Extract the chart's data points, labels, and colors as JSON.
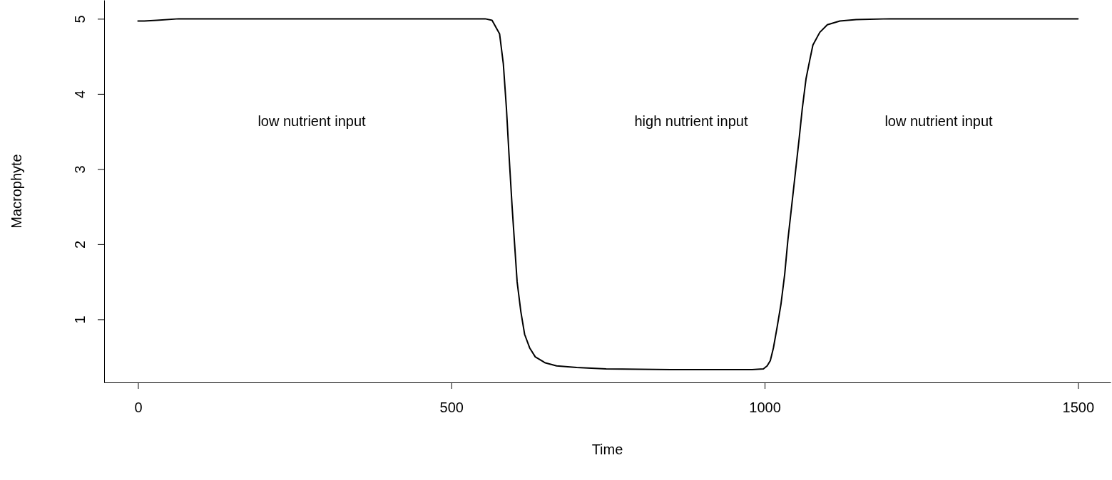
{
  "chart_data": {
    "type": "line",
    "xlabel": "Time",
    "ylabel": "Macrophyte",
    "xlim": [
      -54,
      1552
    ],
    "ylim": [
      0.16,
      5.25
    ],
    "xticks": [
      0,
      500,
      1000,
      1500
    ],
    "yticks": [
      1,
      2,
      3,
      4,
      5
    ],
    "grid": false,
    "line_style": "solid",
    "marker": "none",
    "series": [
      {
        "color": "#000000",
        "x": [
          0,
          10,
          30,
          65,
          200,
          400,
          554,
          565,
          577,
          583,
          588,
          592,
          597,
          601,
          605,
          611,
          617,
          625,
          634,
          650,
          668,
          700,
          747,
          850,
          918,
          980,
          998,
          1004,
          1009,
          1014,
          1020,
          1026,
          1032,
          1037,
          1043,
          1049,
          1055,
          1060,
          1066,
          1072,
          1077,
          1088,
          1100,
          1120,
          1146,
          1200,
          1350,
          1500
        ],
        "values": [
          4.97,
          4.97,
          4.98,
          5,
          5,
          5,
          5,
          4.98,
          4.8,
          4.4,
          3.8,
          3.2,
          2.5,
          2,
          1.5,
          1.1,
          0.8,
          0.62,
          0.5,
          0.42,
          0.38,
          0.36,
          0.34,
          0.33,
          0.33,
          0.33,
          0.34,
          0.38,
          0.45,
          0.62,
          0.9,
          1.2,
          1.6,
          2.05,
          2.5,
          2.95,
          3.4,
          3.8,
          4.2,
          4.45,
          4.65,
          4.82,
          4.92,
          4.97,
          4.99,
          5,
          5,
          5
        ]
      }
    ],
    "annotations": [
      "low nutrient input",
      "high nutrient input",
      "low nutrient input"
    ]
  }
}
